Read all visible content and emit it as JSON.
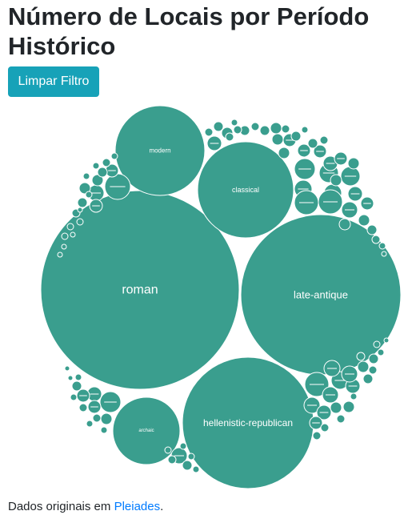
{
  "page": {
    "title": "Número de Locais por Período Histórico",
    "filter_button": "Limpar Filtro",
    "footer_prefix": "Dados originais em ",
    "footer_link": "Pleiades",
    "footer_suffix": "."
  },
  "colors": {
    "bubble": "#3a9e8e",
    "button": "#17a2b8",
    "link": "#007bff",
    "text": "#212529"
  },
  "chart_data": {
    "type": "bubble",
    "title": "Número de Locais por Período Histórico",
    "series": [
      {
        "labeled_bubbles": [
          {
            "label": "roman",
            "relative_value": 1.0
          },
          {
            "label": "late-antique",
            "relative_value": 0.65
          },
          {
            "label": "hellenistic-republican",
            "relative_value": 0.43
          },
          {
            "label": "classical",
            "relative_value": 0.23
          },
          {
            "label": "modern",
            "relative_value": 0.2
          },
          {
            "label": "archaic",
            "relative_value": 0.12
          }
        ],
        "unlabeled_small_bubbles": "many small bubbles (periods too small to label)"
      }
    ]
  }
}
